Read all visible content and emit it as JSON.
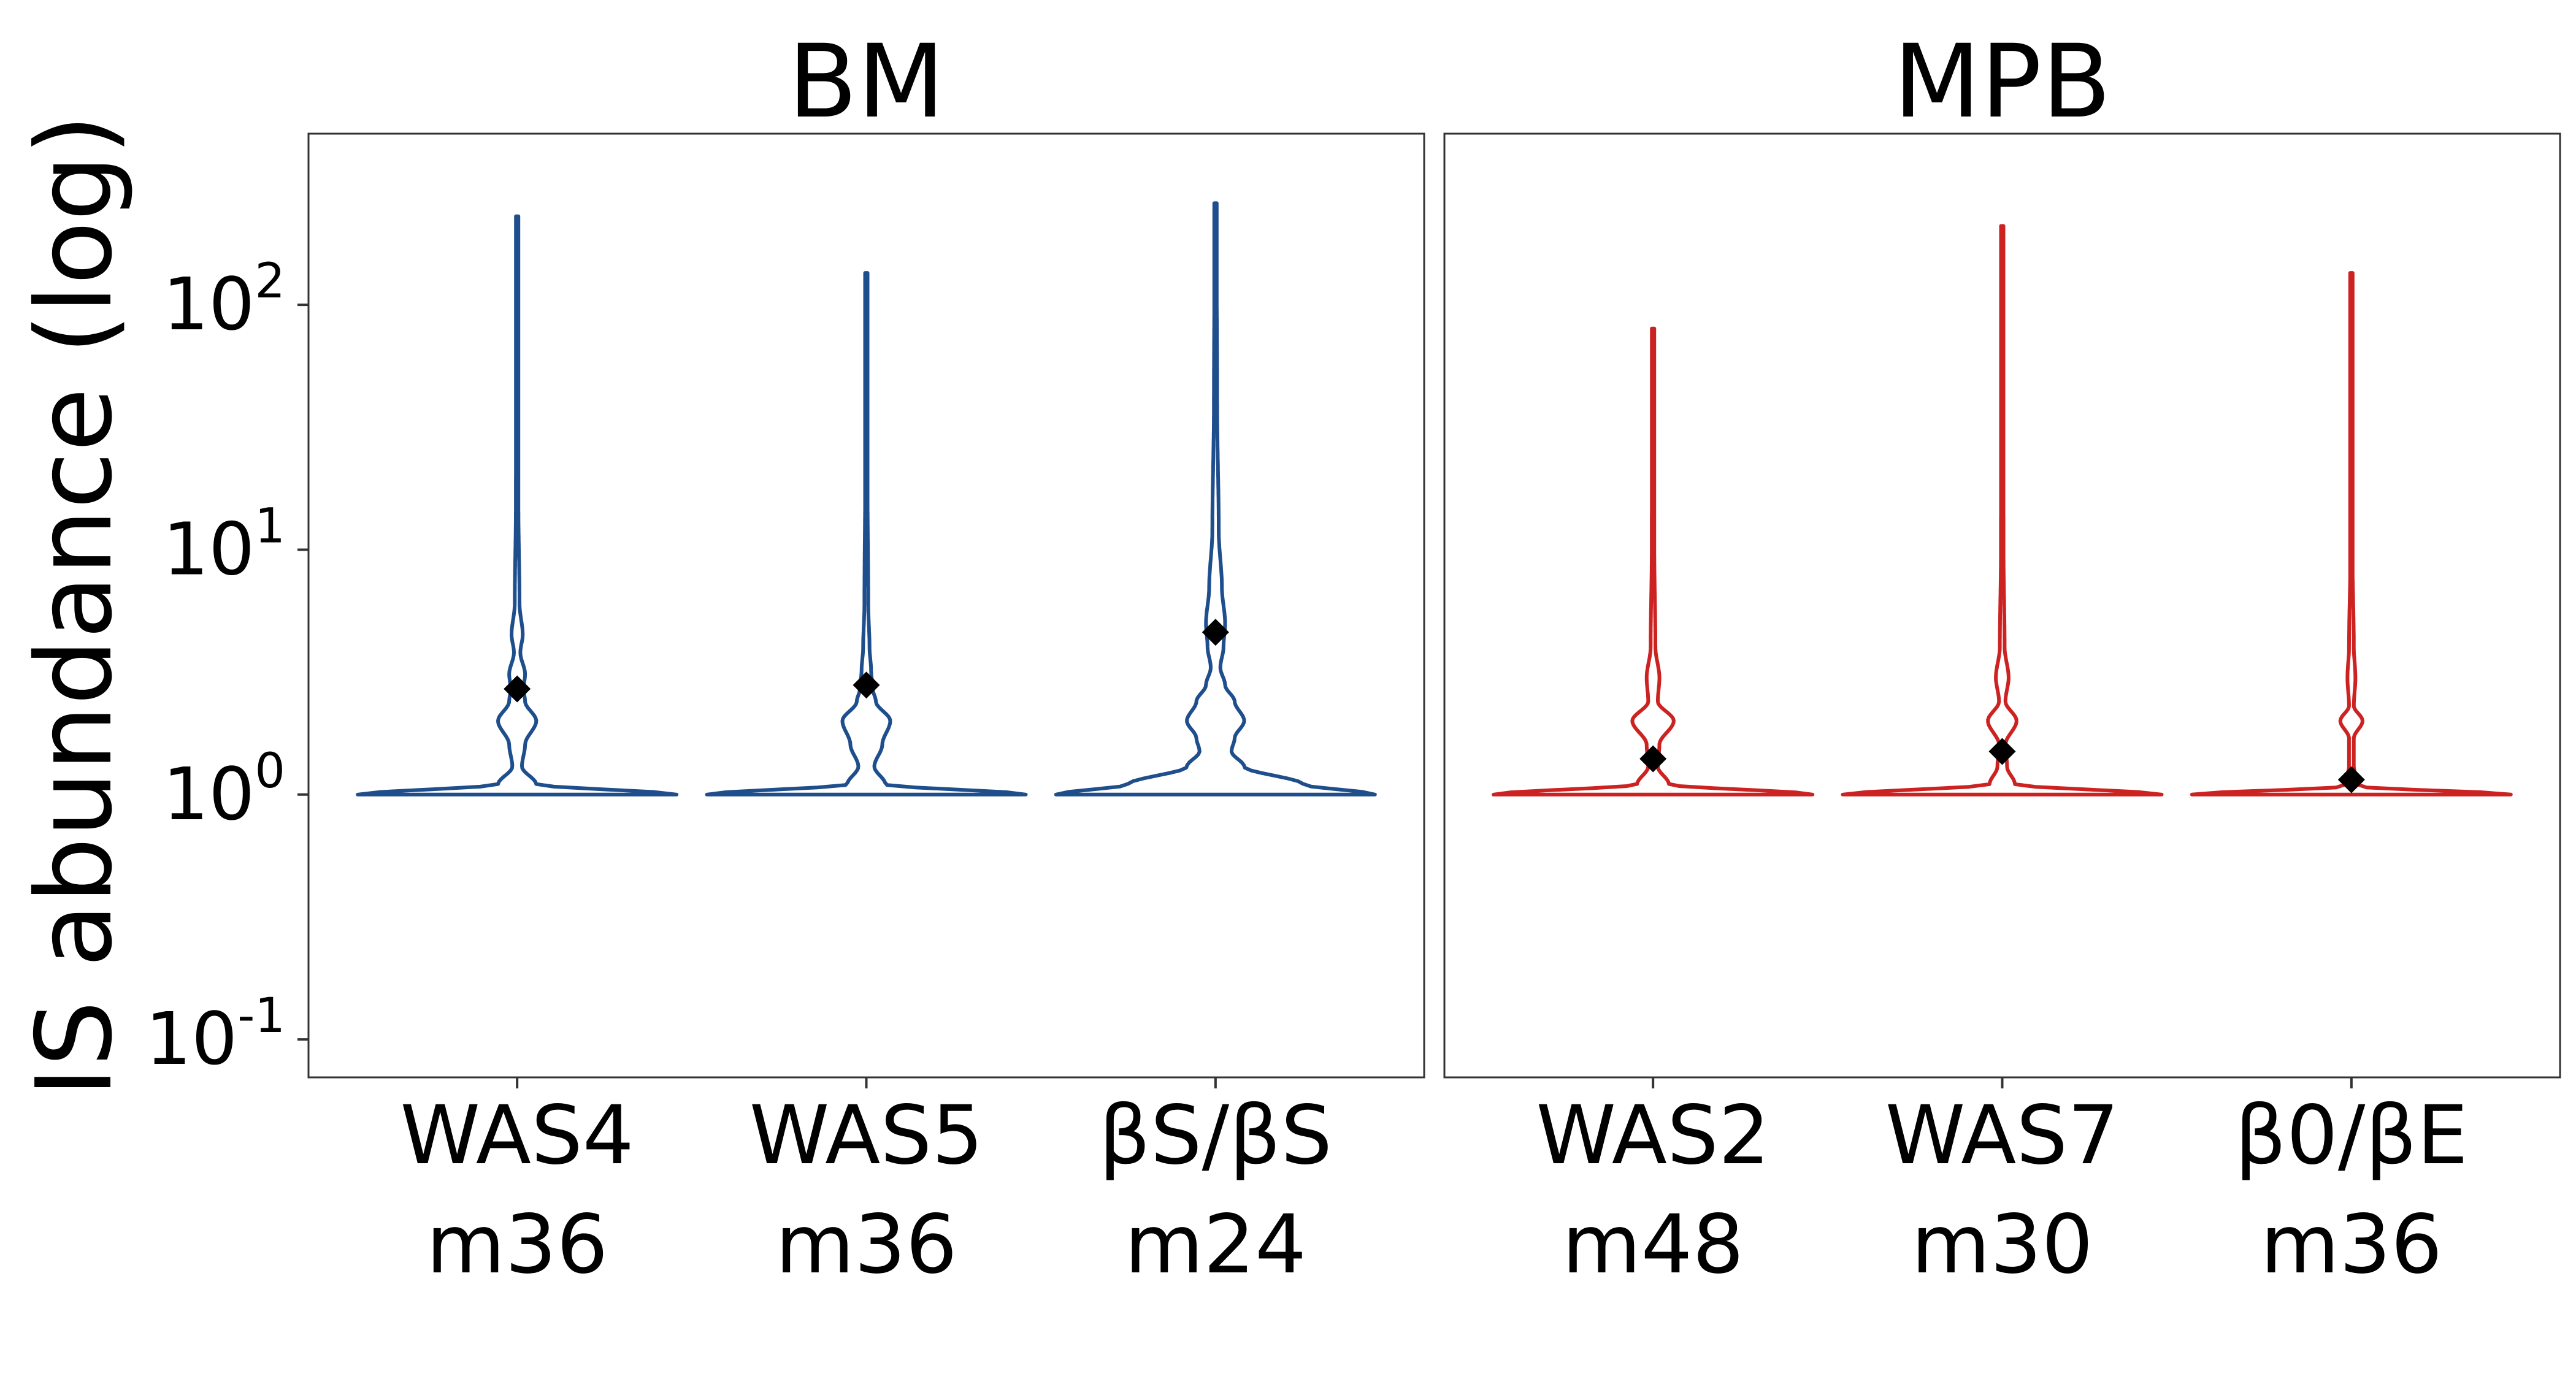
{
  "chart_data": {
    "type": "violin",
    "ylabel": "IS abundance (log)",
    "yscale": "log",
    "ylim": [
      0.07,
      500
    ],
    "yticks": [
      {
        "value": 0.1,
        "base": "10",
        "exp": "-1"
      },
      {
        "value": 1,
        "base": "10",
        "exp": "0"
      },
      {
        "value": 10,
        "base": "10",
        "exp": "1"
      },
      {
        "value": 100,
        "base": "10",
        "exp": "2"
      }
    ],
    "marker": "mean (diamond)",
    "grid": false,
    "legend": "none",
    "panels": [
      {
        "title": "BM",
        "color": "#1f4e8c",
        "groups": [
          {
            "label": [
              "WAS4",
              "m36"
            ],
            "mean": 2.7,
            "min": 1,
            "max": 230,
            "profile": [
              [
                1.0,
                1.0
              ],
              [
                1.1,
                0.12
              ],
              [
                1.3,
                0.03
              ],
              [
                1.6,
                0.05
              ],
              [
                2.0,
                0.12
              ],
              [
                2.4,
                0.05
              ],
              [
                2.7,
                0.04
              ],
              [
                3.1,
                0.05
              ],
              [
                3.8,
                0.02
              ],
              [
                4.5,
                0.035
              ],
              [
                6,
                0.015
              ],
              [
                15,
                0.008
              ],
              [
                60,
                0.005
              ],
              [
                230,
                0.004
              ]
            ]
          },
          {
            "label": [
              "WAS5",
              "m36"
            ],
            "mean": 2.8,
            "min": 1,
            "max": 135,
            "profile": [
              [
                1.0,
                1.0
              ],
              [
                1.1,
                0.12
              ],
              [
                1.3,
                0.05
              ],
              [
                1.6,
                0.1
              ],
              [
                2.0,
                0.15
              ],
              [
                2.4,
                0.06
              ],
              [
                2.7,
                0.04
              ],
              [
                3.2,
                0.03
              ],
              [
                4,
                0.02
              ],
              [
                6,
                0.012
              ],
              [
                20,
                0.007
              ],
              [
                135,
                0.004
              ]
            ]
          },
          {
            "label": [
              "βS/βS",
              "m24"
            ],
            "mean": 4.6,
            "min": 1,
            "max": 260,
            "profile": [
              [
                1.0,
                1.0
              ],
              [
                1.1,
                0.55
              ],
              [
                1.3,
                0.18
              ],
              [
                1.5,
                0.1
              ],
              [
                1.7,
                0.12
              ],
              [
                2.0,
                0.18
              ],
              [
                2.4,
                0.12
              ],
              [
                2.8,
                0.06
              ],
              [
                3.3,
                0.03
              ],
              [
                4,
                0.05
              ],
              [
                5,
                0.06
              ],
              [
                7,
                0.04
              ],
              [
                12,
                0.02
              ],
              [
                40,
                0.01
              ],
              [
                260,
                0.005
              ]
            ]
          }
        ]
      },
      {
        "title": "MPB",
        "color": "#cc2222",
        "groups": [
          {
            "label": [
              "WAS2",
              "m48"
            ],
            "mean": 1.4,
            "min": 1,
            "max": 80,
            "profile": [
              [
                1.0,
                1.0
              ],
              [
                1.1,
                0.1
              ],
              [
                1.3,
                0.03
              ],
              [
                1.6,
                0.04
              ],
              [
                2.0,
                0.13
              ],
              [
                2.4,
                0.03
              ],
              [
                3.0,
                0.04
              ],
              [
                4,
                0.015
              ],
              [
                10,
                0.008
              ],
              [
                80,
                0.004
              ]
            ]
          },
          {
            "label": [
              "WAS7",
              "m30"
            ],
            "mean": 1.5,
            "min": 1,
            "max": 210,
            "profile": [
              [
                1.0,
                1.0
              ],
              [
                1.1,
                0.08
              ],
              [
                1.3,
                0.03
              ],
              [
                1.6,
                0.02
              ],
              [
                2.0,
                0.09
              ],
              [
                2.4,
                0.02
              ],
              [
                3.0,
                0.04
              ],
              [
                4,
                0.015
              ],
              [
                10,
                0.008
              ],
              [
                210,
                0.004
              ]
            ]
          },
          {
            "label": [
              "β0/βE",
              "m36"
            ],
            "mean": 1.15,
            "min": 1,
            "max": 135,
            "profile": [
              [
                1.0,
                1.0
              ],
              [
                1.08,
                0.05
              ],
              [
                1.3,
                0.015
              ],
              [
                1.7,
                0.015
              ],
              [
                2.0,
                0.07
              ],
              [
                2.3,
                0.015
              ],
              [
                3.0,
                0.025
              ],
              [
                4,
                0.015
              ],
              [
                10,
                0.006
              ],
              [
                135,
                0.004
              ]
            ]
          }
        ]
      }
    ]
  }
}
